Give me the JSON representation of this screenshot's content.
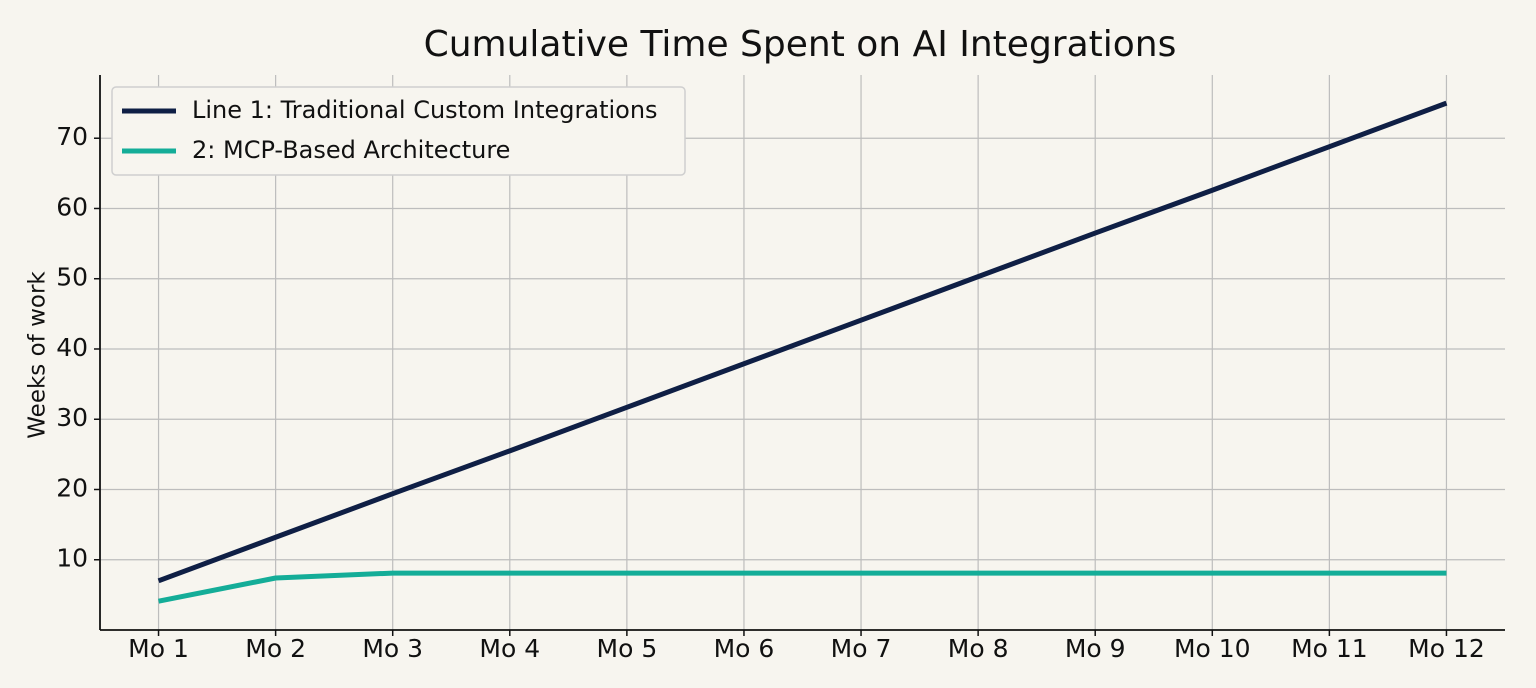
{
  "chart_data": {
    "type": "line",
    "title": "Cumulative Time Spent on AI Integrations",
    "y_label": "Weeks of work",
    "categories": [
      "Mo 1",
      "Mo 2",
      "Mo 3",
      "Mo 4",
      "Mo 5",
      "Mo 6",
      "Mo 7",
      "Mo 8",
      "Mo 9",
      "Mo 10",
      "Mo 11",
      "Mo 12"
    ],
    "series": [
      {
        "name": "Line 1: Traditional Custom Integrations",
        "color": "#0f1f45",
        "values": [
          7,
          13.2,
          19.4,
          25.5,
          31.7,
          37.9,
          44.1,
          50.3,
          56.5,
          62.6,
          68.8,
          75
        ]
      },
      {
        "name": "2: MCP-Based Architecture",
        "color": "#14ad98",
        "values": [
          4.1,
          7.4,
          8.1,
          8.1,
          8.1,
          8.1,
          8.1,
          8.1,
          8.1,
          8.1,
          8.1,
          8.1
        ]
      }
    ],
    "ylim": [
      0,
      79
    ],
    "yticks": [
      10,
      20,
      30,
      40,
      50,
      60,
      70
    ],
    "grid": true,
    "legend": "upper-left"
  }
}
